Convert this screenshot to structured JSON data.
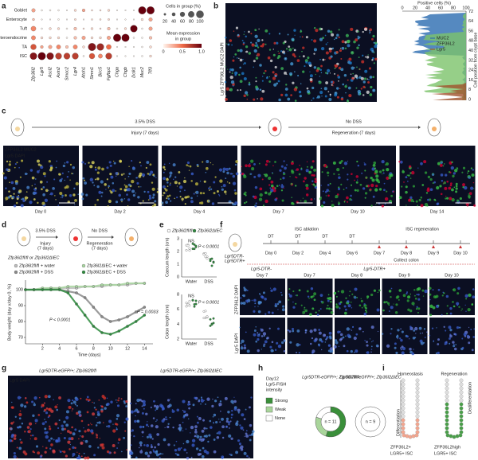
{
  "panel_labels": [
    "a",
    "b",
    "c",
    "d",
    "e",
    "f",
    "g",
    "h",
    "i"
  ],
  "a": {
    "rows": [
      "Goblet",
      "Enterocyte",
      "Tuft",
      "Enteroendocrine",
      "TA",
      "ISC"
    ],
    "genes": [
      "Zfp36l2",
      "Lgr5",
      "Ascl2",
      "Axin2",
      "Smoc2",
      "Lgr4",
      "Atoh1",
      "Stmn1",
      "Birc5",
      "Fgfbp1",
      "Chga",
      "Chgb",
      "Dclk1",
      "Muc2",
      "Tff3"
    ],
    "pct": [
      [
        40,
        10,
        10,
        10,
        5,
        20,
        30,
        10,
        10,
        20,
        5,
        5,
        5,
        100,
        100
      ],
      [
        20,
        5,
        5,
        10,
        5,
        15,
        5,
        10,
        10,
        15,
        5,
        5,
        5,
        20,
        40
      ],
      [
        60,
        10,
        20,
        20,
        10,
        30,
        10,
        20,
        10,
        30,
        10,
        20,
        90,
        10,
        40
      ],
      [
        50,
        20,
        20,
        20,
        10,
        30,
        40,
        20,
        20,
        40,
        100,
        100,
        10,
        10,
        30
      ],
      [
        70,
        30,
        40,
        50,
        30,
        50,
        20,
        100,
        90,
        60,
        5,
        5,
        5,
        10,
        20
      ],
      [
        90,
        100,
        90,
        80,
        80,
        80,
        10,
        70,
        50,
        80,
        5,
        5,
        5,
        10,
        20
      ]
    ],
    "expr": [
      [
        0.3,
        0,
        0,
        0,
        0,
        0.1,
        0.3,
        0.1,
        0.1,
        0.1,
        0,
        0,
        0,
        1,
        1
      ],
      [
        0.2,
        0,
        0,
        0,
        0,
        0.1,
        0,
        0.1,
        0.1,
        0.1,
        0,
        0,
        0,
        0.1,
        0.3
      ],
      [
        0.4,
        0,
        0.1,
        0.1,
        0,
        0.2,
        0.1,
        0.1,
        0.1,
        0.2,
        0,
        0.1,
        1,
        0,
        0.3
      ],
      [
        0.4,
        0.1,
        0.1,
        0.1,
        0,
        0.2,
        0.3,
        0.1,
        0.1,
        0.3,
        1,
        1,
        0,
        0,
        0.2
      ],
      [
        0.6,
        0.3,
        0.3,
        0.4,
        0.2,
        0.4,
        0.1,
        0.9,
        0.8,
        0.5,
        0,
        0,
        0,
        0,
        0.1
      ],
      [
        0.9,
        1,
        0.9,
        0.7,
        0.7,
        0.7,
        0,
        0.6,
        0.4,
        0.7,
        0,
        0,
        0,
        0,
        0.1
      ]
    ],
    "size_title": "Cells in group (%)",
    "size_ticks": [
      "20",
      "40",
      "60",
      "80",
      "100"
    ],
    "color_title": "Mean expression",
    "color_title2": "in group",
    "color_ticks": [
      "0",
      "0.5",
      "1.0"
    ]
  },
  "b": {
    "stain": "Lgr5 ZFP36L2 MUC2 DAPI",
    "x_title": "Positive cells (%)",
    "x_ticks": [
      "0",
      "20",
      "40",
      "60",
      "80",
      "100"
    ],
    "y_title": "Cell position from crypt base",
    "y_ticks": [
      "0",
      "8",
      "16",
      "24",
      "32",
      "40",
      "48",
      "56",
      "64",
      "72"
    ],
    "legend": [
      "MUC2",
      "ZFP36L2",
      "Lgr5"
    ]
  },
  "c": {
    "treat1": "3.5% DSS",
    "phase1": "Injury (7 days)",
    "treat2": "No DSS",
    "phase2": "Regeneration (7 days)",
    "stain1": "ZFP36L2 MUC2",
    "stain2": "Lgr5 DAPI",
    "days": [
      "Day 0",
      "Day 2",
      "Day 4",
      "Day 7",
      "Day 10",
      "Day 14"
    ]
  },
  "d": {
    "treat1": "3.5% DSS",
    "phase1": "Injury",
    "phase1b": "(7 days)",
    "treat2": "No DSS",
    "phase2": "Regeneration",
    "phase2b": "(7 days)",
    "genotype": "Zfp36l2fl/fl or Zfp36l2ΔIEC",
    "y_title": "Body weight (day x/day 0, %)",
    "x_title": "Time (days)",
    "x": [
      0,
      1,
      2,
      3,
      4,
      5,
      6,
      7,
      8,
      9,
      10,
      11,
      12,
      13,
      14
    ],
    "xlim": [
      0,
      15
    ],
    "ylim": [
      66,
      106
    ],
    "xticks": [
      2,
      4,
      6,
      8,
      10,
      12,
      14
    ],
    "yticks": [
      70,
      80,
      90,
      100
    ],
    "series": [
      {
        "name": "Zfp36l2fl/fl + water",
        "color": "#bdbdbd",
        "values": [
          100,
          100,
          100,
          101,
          101,
          101,
          101,
          102,
          102,
          102,
          103,
          103,
          103,
          104,
          104
        ]
      },
      {
        "name": "Zfp36l2ΔIEC + water",
        "color": "#a8d5a0",
        "values": [
          100,
          100,
          101,
          101,
          101,
          102,
          102,
          102,
          102,
          103,
          103,
          103,
          104,
          104,
          104
        ]
      },
      {
        "name": "Zfp36l2fl/fl + DSS",
        "color": "#8a8a8a",
        "values": [
          100,
          100,
          100,
          100,
          100,
          99,
          98,
          95,
          89,
          83,
          80,
          81,
          83,
          86,
          89
        ]
      },
      {
        "name": "Zfp36l2ΔIEC + DSS",
        "color": "#2e8b3e",
        "values": [
          100,
          100,
          100,
          100,
          100,
          98,
          91,
          84,
          77,
          73,
          72,
          74,
          77,
          80,
          84
        ]
      }
    ],
    "p1": "P < 0.0001",
    "p2": "P = 0.0033"
  },
  "e": {
    "legend": [
      "Zfp36l2fl/fl",
      "Zfp36l2ΔIEC"
    ],
    "caecum_title": "Caecum length (cm)",
    "caecum_ticks": [
      "0",
      "1",
      "2",
      "3"
    ],
    "colon_title": "Colon length (cm)",
    "colon_ticks": [
      "2",
      "4",
      "6",
      "8"
    ],
    "ns": "NS",
    "p": "P < 0.0001",
    "groups": [
      "Water",
      "DSS"
    ]
  },
  "f": {
    "mouse": "Lgr5DTR-",
    "mouse2": "Lgr5DTR+",
    "ablation": "ISC ablation",
    "regeneration": "ISC regeneration",
    "dt": "DT",
    "timeline": [
      "Day 0",
      "Day 2",
      "Day 4",
      "Day 6",
      "Day 7",
      "Day 8",
      "Day 9",
      "Day 10"
    ],
    "collect": "Collect colon",
    "headers": [
      "Lgr5-DTR-",
      "Lgr5-DTR+"
    ],
    "days": [
      "Day 7",
      "Day 7",
      "Day 8",
      "Day 9",
      "Day 10"
    ],
    "stain1": "ZFP36L2 DAPI",
    "stain2": "Lgr5 DAPI"
  },
  "g": {
    "left": "Lgr5DTR-eGFP/+; Zfp36l2fl/fl",
    "right": "Lgr5DTR-eGFP/+; Zfp36l2ΔIEC",
    "stain": "Lgr5 DAPI"
  },
  "h": {
    "title": [
      "Day12",
      "Lgr5-FISH",
      "intensity"
    ],
    "legend": [
      "Strong",
      "Weak",
      "None"
    ],
    "colors": [
      "#3a8f3a",
      "#a9d59b",
      "#ffffff"
    ],
    "genotypes": [
      "Lgr5DTR-eGFP/+; Zfp36l2fl/fl",
      "Lgr5DTR-eGFP/+; Zfp36l2ΔIEC"
    ],
    "fractions": [
      [
        55,
        25,
        20
      ],
      [
        0,
        0,
        100
      ]
    ],
    "n": [
      "n = 11",
      "n = 9"
    ]
  },
  "i": {
    "left": "Homeostasis",
    "right": "Regeneration",
    "diff": "Differentiation",
    "dediff": "Dedifferentiation",
    "legend_left": [
      "ZFP36L2+",
      "LGR5+ ISC"
    ],
    "legend_right": [
      "ZFP36L2high",
      "LGR5+ ISC"
    ]
  }
}
